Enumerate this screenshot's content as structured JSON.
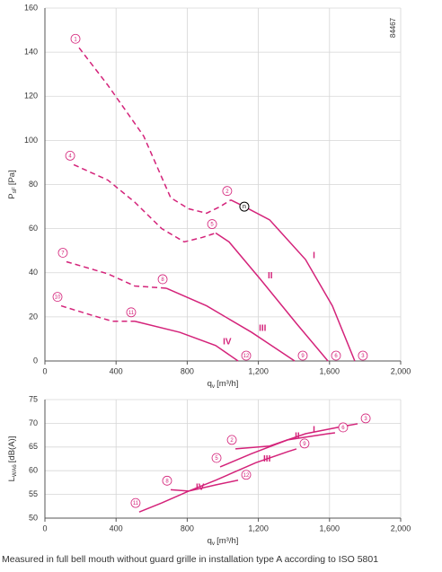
{
  "chart_data": [
    {
      "type": "line",
      "code": "84467",
      "x_label": {
        "symbol": "q",
        "subscript": "v",
        "unit": "[m³/h]"
      },
      "y_label": {
        "symbol": "P",
        "subscript": "sF",
        "unit": "[Pa]"
      },
      "xlim": [
        0,
        2000
      ],
      "ylim": [
        0,
        160
      ],
      "xticks": [
        0,
        400,
        800,
        {
          "value": 1200,
          "label": "1,200"
        },
        {
          "value": 1600,
          "label": "1,600"
        },
        {
          "value": 2000,
          "label": "2,000"
        }
      ],
      "yticks": [
        0,
        20,
        40,
        60,
        80,
        100,
        120,
        140,
        160
      ],
      "grid": true,
      "color": "#d4237a",
      "series": [
        {
          "name": "I",
          "markers": [
            "1",
            "2",
            "3"
          ],
          "point_label": "n",
          "pieces": [
            {
              "style": "dashed",
              "x": [
                192,
                354,
                555,
                707,
                808,
                909,
                985,
                1045
              ],
              "values": [
                142,
                125,
                102,
                74,
                69,
                67,
                70,
                73
              ]
            },
            {
              "style": "solid",
              "x": [
                1045,
                1121,
                1263,
                1465,
                1616,
                1742
              ],
              "values": [
                73,
                70,
                64,
                46,
                25,
                0
              ]
            }
          ]
        },
        {
          "name": "II",
          "markers": [
            "4",
            "5",
            "6"
          ],
          "pieces": [
            {
              "style": "dashed",
              "x": [
                162,
                354,
                505,
                657,
                783,
                884,
                960
              ],
              "values": [
                89,
                82,
                72,
                60,
                54,
                56,
                58
              ]
            },
            {
              "style": "solid",
              "x": [
                960,
                1035,
                1212,
                1414,
                1591
              ],
              "values": [
                58,
                54,
                37,
                17,
                0
              ]
            }
          ]
        },
        {
          "name": "III",
          "markers": [
            "7",
            "8",
            "9"
          ],
          "pieces": [
            {
              "style": "dashed",
              "x": [
                121,
                354,
                505,
                682
              ],
              "values": [
                45,
                39.5,
                34,
                33
              ]
            },
            {
              "style": "solid",
              "x": [
                682,
                909,
                1162,
                1404
              ],
              "values": [
                33,
                25,
                13,
                0
              ]
            }
          ]
        },
        {
          "name": "IV",
          "markers": [
            "10",
            "11",
            "12"
          ],
          "pieces": [
            {
              "style": "dashed",
              "x": [
                91,
                253,
                379,
                505
              ],
              "values": [
                25,
                21,
                18,
                18
              ]
            },
            {
              "style": "solid",
              "x": [
                505,
                758,
                960,
                1086
              ],
              "values": [
                18,
                13,
                7,
                0
              ]
            }
          ]
        }
      ]
    },
    {
      "type": "line",
      "x_label": {
        "symbol": "q",
        "subscript": "v",
        "unit": "[m³/h]"
      },
      "y_label": {
        "symbol": "L",
        "subscript": "WA6",
        "unit": "[dB(A)]"
      },
      "xlim": [
        0,
        2000
      ],
      "ylim": [
        50,
        75
      ],
      "xticks": [
        0,
        400,
        800,
        {
          "value": 1200,
          "label": "1,200"
        },
        {
          "value": 1600,
          "label": "1,600"
        },
        {
          "value": 2000,
          "label": "2,000"
        }
      ],
      "yticks": [
        50,
        55,
        60,
        65,
        70,
        75
      ],
      "grid": true,
      "color": "#d4237a",
      "series": [
        {
          "name": "I",
          "markers": [
            "2",
            "3"
          ],
          "pieces": [
            {
              "style": "solid",
              "x": [
                1071,
                1263,
                1465,
                1667,
                1758
              ],
              "values": [
                64.6,
                65.2,
                67.8,
                69.3,
                69.9
              ]
            }
          ]
        },
        {
          "name": "II",
          "markers": [
            "5",
            "6"
          ],
          "pieces": [
            {
              "style": "solid",
              "x": [
                985,
                1162,
                1364,
                1591,
                1631
              ],
              "values": [
                60.8,
                63.6,
                66.5,
                67.8,
                68
              ]
            }
          ]
        },
        {
          "name": "III",
          "markers": [
            "8",
            "9"
          ],
          "pieces": [
            {
              "style": "solid",
              "x": [
                707,
                808,
                960,
                1187,
                1364,
                1414
              ],
              "values": [
                56,
                55.7,
                58,
                61.7,
                64,
                64.6
              ]
            }
          ]
        },
        {
          "name": "IV",
          "markers": [
            "11",
            "12"
          ],
          "pieces": [
            {
              "style": "solid",
              "x": [
                530,
                657,
                808,
                960,
                1086
              ],
              "values": [
                51.3,
                53.2,
                55.7,
                57,
                58
              ]
            }
          ]
        }
      ]
    }
  ],
  "caption": "Measured in full bell mouth without guard grille in installation type A according to ISO 5801"
}
